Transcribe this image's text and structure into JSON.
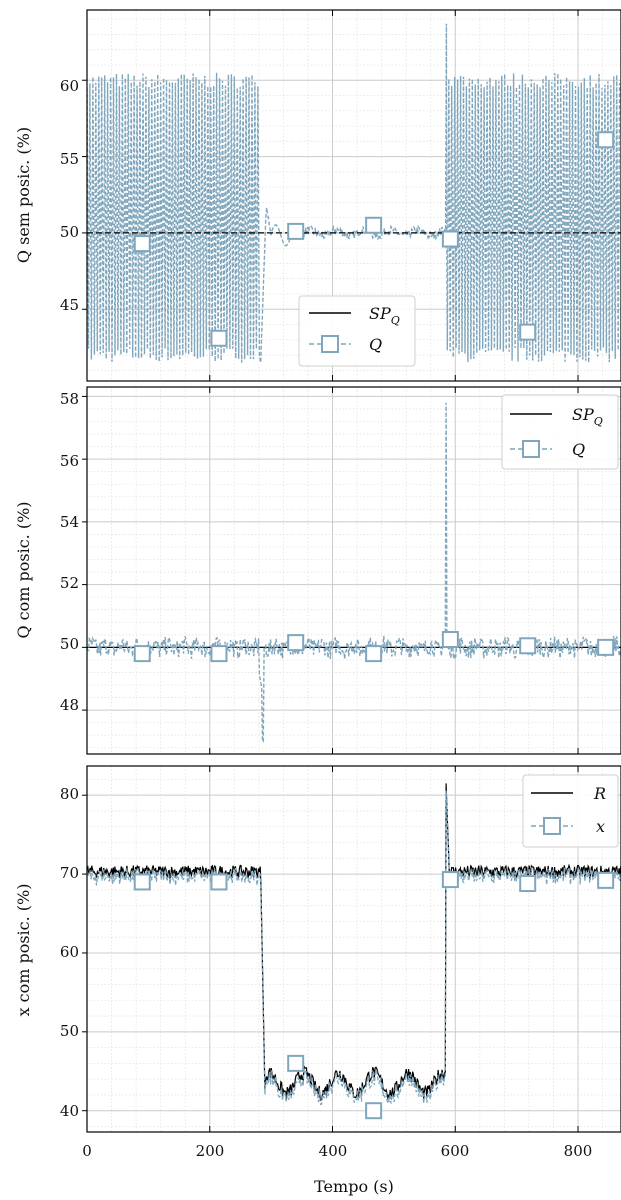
{
  "chart_data": [
    {
      "type": "line",
      "ylabel": "Q sem posic. (%)",
      "xlim": [
        0,
        870
      ],
      "ylim": [
        40.3,
        64.6
      ],
      "yticks": [
        45,
        50,
        55,
        60
      ],
      "grid": true,
      "legend": {
        "placement": "bottom-center",
        "entries": [
          "SP_Q",
          "Q"
        ]
      },
      "series": [
        {
          "name": "SP_Q",
          "color": "#000000",
          "style": "solid",
          "x": [
            0,
            870
          ],
          "y": [
            50,
            50
          ]
        },
        {
          "name": "Q",
          "color": "#7fa6bc",
          "style": "dashed-square-markers",
          "segments": [
            {
              "x": [
                0,
                283
              ],
              "pattern": "oscillation",
              "low": 42,
              "high": 60
            },
            {
              "x": [
                283,
                585
              ],
              "pattern": "settled",
              "peak": 51.8,
              "level": 50
            },
            {
              "x": [
                585,
                870
              ],
              "pattern": "oscillation",
              "low": 42,
              "high": 60,
              "spike": 63.7
            }
          ],
          "markers": [
            [
              90,
              49.3
            ],
            [
              215,
              43.1
            ],
            [
              340,
              50.1
            ],
            [
              467,
              50.5
            ],
            [
              592,
              49.6
            ],
            [
              718,
              43.5
            ],
            [
              845,
              56.1
            ]
          ]
        }
      ]
    },
    {
      "type": "line",
      "ylabel": "Q com posic. (%)",
      "xlim": [
        0,
        870
      ],
      "ylim": [
        46.6,
        58.3
      ],
      "yticks": [
        48,
        50,
        52,
        54,
        56,
        58
      ],
      "grid": true,
      "legend": {
        "placement": "top-right",
        "entries": [
          "SP_Q",
          "Q"
        ]
      },
      "series": [
        {
          "name": "SP_Q",
          "color": "#000000",
          "style": "solid",
          "x": [
            0,
            870
          ],
          "y": [
            50,
            50
          ]
        },
        {
          "name": "Q",
          "color": "#7fa6bc",
          "style": "dashed-square-markers",
          "level": 50,
          "noise": 0.3,
          "dip": [
            287,
            47.0
          ],
          "spike": [
            585,
            57.8
          ],
          "markers": [
            [
              90,
              49.8
            ],
            [
              215,
              49.8
            ],
            [
              340,
              50.15
            ],
            [
              467,
              49.8
            ],
            [
              592,
              50.25
            ],
            [
              718,
              50.05
            ],
            [
              845,
              50.0
            ]
          ]
        }
      ]
    },
    {
      "type": "line",
      "ylabel": "x com posic. (%)",
      "xlabel": "Tempo (s)",
      "xlim": [
        0,
        870
      ],
      "ylim": [
        37.3,
        83.7
      ],
      "yticks": [
        40,
        50,
        60,
        70,
        80
      ],
      "xticks": [
        0,
        200,
        400,
        600,
        800
      ],
      "grid": true,
      "legend": {
        "placement": "top-right",
        "entries": [
          "R",
          "x"
        ]
      },
      "series": [
        {
          "name": "R",
          "color": "#000000",
          "style": "solid",
          "segments": [
            {
              "x": [
                0,
                283
              ],
              "level": 70.3
            },
            {
              "x": [
                290,
                585
              ],
              "level": 43.5
            },
            {
              "x": [
                590,
                870
              ],
              "level": 70.3
            }
          ],
          "spike": [
            585,
            81.5
          ]
        },
        {
          "name": "x",
          "color": "#7fa6bc",
          "style": "dashed-square-markers",
          "markers": [
            [
              90,
              69
            ],
            [
              215,
              69
            ],
            [
              340,
              46
            ],
            [
              467,
              40
            ],
            [
              592,
              69.3
            ],
            [
              718,
              68.8
            ],
            [
              845,
              69.2
            ]
          ]
        }
      ]
    }
  ],
  "legend_labels": {
    "setpoint": "SP",
    "setpoint_sub": "Q",
    "flow": "Q",
    "reference": "R",
    "position": "x"
  },
  "x_tick_labels": [
    "0",
    "200",
    "400",
    "600",
    "800"
  ],
  "panel1_y_tick_labels": [
    "45",
    "50",
    "55",
    "60"
  ],
  "panel2_y_tick_labels": [
    "48",
    "50",
    "52",
    "54",
    "56",
    "58"
  ],
  "panel3_y_tick_labels": [
    "40",
    "50",
    "60",
    "70",
    "80"
  ],
  "axis_labels": {
    "panel1_y": "Q sem posic. (%)",
    "panel2_y": "Q com posic. (%)",
    "panel3_y": "x com posic. (%)",
    "x": "Tempo (s)"
  },
  "colors": {
    "reference": "#000000",
    "measured": "#7fa6bc",
    "grid_major": "#cccccc",
    "grid_minor": "#e2e2e2"
  }
}
